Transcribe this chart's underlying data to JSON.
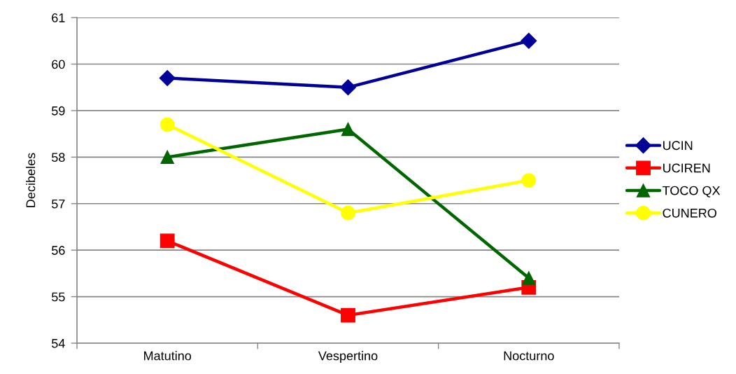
{
  "chart_data": {
    "type": "line",
    "ylabel": "Decibeles",
    "categories": [
      "Matutino",
      "Vespertino",
      "Nocturno"
    ],
    "series": [
      {
        "name": "UCIN",
        "color": "#000099",
        "values": [
          59.7,
          59.5,
          60.5
        ],
        "marker": "diamond"
      },
      {
        "name": "UCIREN",
        "color": "#ff0000",
        "values": [
          56.2,
          54.6,
          55.2
        ],
        "marker": "square"
      },
      {
        "name": "TOCO QX",
        "color": "#006600",
        "values": [
          58.0,
          58.6,
          55.4
        ],
        "marker": "triangle"
      },
      {
        "name": "CUNERO",
        "color": "#ffff00",
        "values": [
          58.7,
          56.8,
          57.5
        ],
        "marker": "circle"
      }
    ],
    "ylim": [
      54,
      61
    ],
    "yticks": [
      54,
      55,
      56,
      57,
      58,
      59,
      60,
      61
    ],
    "grid": "y",
    "legend": "right",
    "line_style": "solid"
  }
}
